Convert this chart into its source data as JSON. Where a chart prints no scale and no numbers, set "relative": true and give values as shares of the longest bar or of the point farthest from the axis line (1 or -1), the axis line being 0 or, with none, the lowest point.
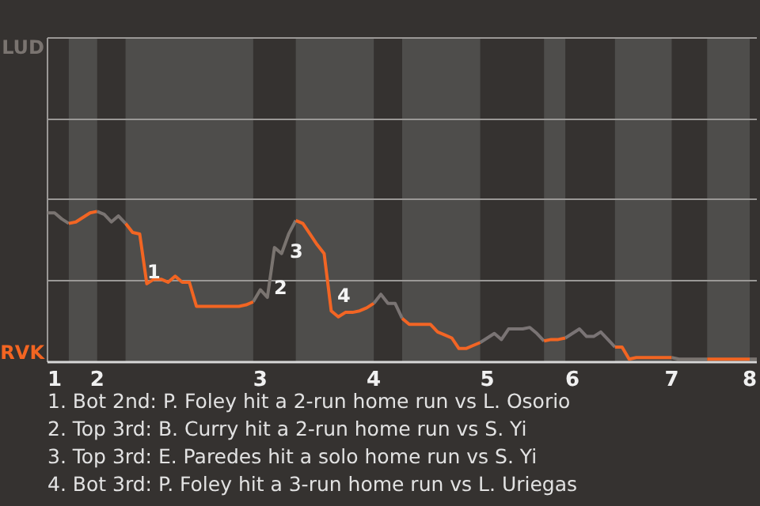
{
  "chart_data": {
    "type": "line",
    "relative": true,
    "ref_lines": [
      {
        "axis": "y",
        "value": 0.54,
        "color": "#9a9896"
      },
      {
        "axis": "y",
        "value": 1.08,
        "color": "#9a9896"
      },
      {
        "axis": "y",
        "value": 1.61,
        "color": "#9a9896"
      }
    ],
    "categories": [
      null,
      "1",
      null,
      null,
      null,
      null,
      null,
      "2",
      null,
      null,
      null,
      null,
      null,
      null,
      null,
      null,
      null,
      null,
      null,
      null,
      null,
      null,
      null,
      null,
      null,
      null,
      null,
      null,
      null,
      null,
      "3",
      null,
      null,
      null,
      null,
      null,
      null,
      null,
      null,
      null,
      null,
      null,
      null,
      null,
      null,
      null,
      "4",
      null,
      null,
      null,
      null,
      null,
      null,
      null,
      null,
      null,
      null,
      null,
      null,
      null,
      null,
      null,
      "5",
      null,
      null,
      null,
      null,
      null,
      null,
      null,
      null,
      null,
      null,
      null,
      "6",
      null,
      null,
      null,
      null,
      null,
      null,
      null,
      null,
      null,
      null,
      null,
      null,
      null,
      "7",
      null,
      null,
      null,
      null,
      null,
      null,
      null,
      null,
      null,
      null,
      "8",
      null
    ],
    "series": [
      {
        "name": "LUD",
        "color": "#7a7470",
        "values": [
          null,
          null,
          null,
          null,
          null,
          null,
          null,
          null,
          null,
          null,
          null,
          null,
          null,
          null,
          null,
          null,
          null,
          null,
          null,
          null,
          null,
          null,
          null,
          null,
          null,
          null,
          null,
          null,
          null,
          0.4,
          0.48,
          0.43,
          0.76,
          0.72,
          0.85,
          0.94,
          null,
          null,
          null,
          null,
          null,
          null,
          null,
          null,
          null,
          null,
          null,
          null,
          null,
          null,
          null,
          null,
          null,
          null,
          null,
          null,
          null,
          null,
          null,
          null,
          null,
          null,
          null,
          null,
          null,
          null,
          null,
          null,
          null,
          null,
          null,
          null,
          null,
          null,
          null,
          null,
          null,
          null,
          null,
          null,
          null,
          null,
          null,
          null,
          null,
          null,
          null,
          null,
          null,
          null,
          null,
          null,
          null,
          null,
          null,
          null,
          null,
          null,
          null,
          null,
          null
        ]
      },
      {
        "name": "RVK",
        "color": "#f26522",
        "values": [
          null,
          null,
          null,
          null,
          null,
          null,
          null,
          null,
          null,
          null,
          null,
          0.92,
          0.86,
          0.85,
          0.52,
          0.55,
          0.55,
          0.53,
          0.57,
          0.53,
          0.53,
          0.37,
          0.37,
          0.37,
          0.37,
          0.37,
          0.37,
          0.37,
          0.38,
          0.4,
          null,
          null,
          null,
          null,
          null,
          null,
          null,
          null,
          null,
          null,
          null,
          null,
          null,
          null,
          null,
          null,
          null,
          null,
          null,
          null,
          null,
          null,
          null,
          null,
          null,
          null,
          null,
          null,
          null,
          null,
          null,
          null,
          null,
          null,
          null,
          null,
          null,
          null,
          null,
          null,
          null,
          null,
          null,
          null,
          null,
          null,
          null,
          null,
          null,
          null,
          null,
          null,
          null,
          null,
          null,
          null,
          null,
          null,
          null,
          null,
          null,
          null,
          null,
          null,
          null,
          null,
          null,
          null,
          null,
          null,
          null
        ]
      },
      {
        "color": "#7a7471",
        "values": [
          0.99,
          0.99,
          0.95,
          0.92,
          null,
          null,
          null,
          null,
          null,
          null,
          null,
          null,
          null,
          null,
          null,
          null,
          null,
          null,
          null,
          null,
          null,
          null,
          null,
          null,
          null,
          null,
          null,
          null,
          null,
          null,
          null,
          null,
          null,
          null,
          null,
          null,
          null,
          null,
          null,
          null,
          null,
          null,
          null,
          null,
          null,
          null,
          null,
          null,
          null,
          null,
          null,
          null,
          null,
          null,
          null,
          null,
          null,
          null,
          null,
          null,
          null,
          null,
          null,
          null,
          null,
          null,
          null,
          null,
          null,
          null,
          null,
          null,
          null,
          null,
          null,
          null,
          null,
          null,
          null,
          null,
          null,
          null,
          null,
          null,
          null,
          null,
          null,
          null,
          null,
          null,
          null,
          null,
          null,
          null,
          null,
          null,
          null,
          null,
          null,
          null,
          null
        ]
      },
      {
        "color": "#f26523",
        "values": [
          null,
          null,
          null,
          0.92,
          0.93,
          0.96,
          0.99,
          1.0,
          null,
          null,
          null,
          null,
          null,
          null,
          null,
          null,
          null,
          null,
          null,
          null,
          null,
          null,
          null,
          null,
          null,
          null,
          null,
          null,
          null,
          null,
          null,
          null,
          null,
          null,
          null,
          null,
          null,
          null,
          null,
          null,
          null,
          null,
          null,
          null,
          null,
          null,
          null,
          null,
          null,
          null,
          null,
          null,
          null,
          null,
          null,
          null,
          null,
          null,
          null,
          null,
          null,
          null,
          null,
          null,
          null,
          null,
          null,
          null,
          null,
          null,
          null,
          null,
          null,
          null,
          null,
          null,
          null,
          null,
          null,
          null,
          null,
          null,
          null,
          null,
          null,
          null,
          null,
          null,
          null,
          null,
          null,
          null,
          null,
          null,
          null,
          null,
          null,
          null,
          null,
          null,
          null
        ]
      },
      {
        "color": "#7a7472",
        "values": [
          null,
          null,
          null,
          null,
          null,
          null,
          null,
          1.0,
          0.98,
          0.93,
          0.97,
          0.92,
          null,
          null,
          null,
          null,
          null,
          null,
          null,
          null,
          null,
          null,
          null,
          null,
          null,
          null,
          null,
          null,
          null,
          null,
          null,
          null,
          null,
          null,
          null,
          null,
          null,
          null,
          null,
          null,
          null,
          null,
          null,
          null,
          null,
          null,
          null,
          null,
          null,
          null,
          null,
          null,
          null,
          null,
          null,
          null,
          null,
          null,
          null,
          null,
          null,
          null,
          null,
          null,
          null,
          null,
          null,
          null,
          null,
          null,
          null,
          null,
          null,
          null,
          null,
          null,
          null,
          null,
          null,
          null,
          null,
          null,
          null,
          null,
          null,
          null,
          null,
          null,
          null,
          null,
          null,
          null,
          null,
          null,
          null,
          null,
          null,
          null,
          null,
          null,
          null
        ]
      },
      {
        "color": "#f26524",
        "values": [
          null,
          null,
          null,
          null,
          null,
          null,
          null,
          null,
          null,
          null,
          null,
          null,
          null,
          null,
          null,
          null,
          null,
          null,
          null,
          null,
          null,
          null,
          null,
          null,
          null,
          null,
          null,
          null,
          null,
          null,
          null,
          null,
          null,
          null,
          null,
          0.94,
          0.92,
          0.85,
          0.78,
          0.72,
          0.34,
          0.3,
          0.33,
          0.33,
          0.34,
          0.36,
          0.39,
          null,
          null,
          null,
          null,
          null,
          null,
          null,
          null,
          null,
          null,
          null,
          null,
          null,
          null,
          null,
          null,
          null,
          null,
          null,
          null,
          null,
          null,
          null,
          null,
          null,
          null,
          null,
          null,
          null,
          null,
          null,
          null,
          null,
          null,
          null,
          null,
          null,
          null,
          null,
          null,
          null,
          null,
          null,
          null,
          null,
          null,
          null,
          null,
          null,
          null,
          null,
          null,
          null,
          null
        ]
      },
      {
        "color": "#7a7473",
        "values": [
          null,
          null,
          null,
          null,
          null,
          null,
          null,
          null,
          null,
          null,
          null,
          null,
          null,
          null,
          null,
          null,
          null,
          null,
          null,
          null,
          null,
          null,
          null,
          null,
          null,
          null,
          null,
          null,
          null,
          null,
          null,
          null,
          null,
          null,
          null,
          null,
          null,
          null,
          null,
          null,
          null,
          null,
          null,
          null,
          null,
          null,
          0.39,
          0.45,
          0.39,
          0.39,
          0.29,
          null,
          null,
          null,
          null,
          null,
          null,
          null,
          null,
          null,
          null,
          null,
          null,
          null,
          null,
          null,
          null,
          null,
          null,
          null,
          null,
          null,
          null,
          null,
          null,
          null,
          null,
          null,
          null,
          null,
          null,
          null,
          null,
          null,
          null,
          null,
          null,
          null,
          null,
          null,
          null,
          null,
          null,
          null,
          null,
          null,
          null,
          null,
          null,
          null,
          null
        ]
      },
      {
        "color": "#f26525",
        "values": [
          null,
          null,
          null,
          null,
          null,
          null,
          null,
          null,
          null,
          null,
          null,
          null,
          null,
          null,
          null,
          null,
          null,
          null,
          null,
          null,
          null,
          null,
          null,
          null,
          null,
          null,
          null,
          null,
          null,
          null,
          null,
          null,
          null,
          null,
          null,
          null,
          null,
          null,
          null,
          null,
          null,
          null,
          null,
          null,
          null,
          null,
          null,
          null,
          null,
          null,
          0.29,
          0.25,
          0.25,
          0.25,
          0.25,
          0.2,
          0.18,
          0.16,
          0.09,
          0.09,
          0.11,
          0.13,
          null,
          null,
          null,
          null,
          null,
          null,
          null,
          null,
          null,
          null,
          null,
          null,
          null,
          null,
          null,
          null,
          null,
          null,
          null,
          null,
          null,
          null,
          null,
          null,
          null,
          null,
          null,
          null,
          null,
          null,
          null,
          null,
          null,
          null,
          null,
          null,
          null,
          null,
          null
        ]
      },
      {
        "color": "#7a7474",
        "values": [
          null,
          null,
          null,
          null,
          null,
          null,
          null,
          null,
          null,
          null,
          null,
          null,
          null,
          null,
          null,
          null,
          null,
          null,
          null,
          null,
          null,
          null,
          null,
          null,
          null,
          null,
          null,
          null,
          null,
          null,
          null,
          null,
          null,
          null,
          null,
          null,
          null,
          null,
          null,
          null,
          null,
          null,
          null,
          null,
          null,
          null,
          null,
          null,
          null,
          null,
          null,
          null,
          null,
          null,
          null,
          null,
          null,
          null,
          null,
          null,
          null,
          0.13,
          0.16,
          0.19,
          0.15,
          0.22,
          0.22,
          0.22,
          0.23,
          0.19,
          0.14,
          null,
          null,
          null,
          null,
          null,
          null,
          null,
          null,
          null,
          null,
          null,
          null,
          null,
          null,
          null,
          null,
          null,
          null,
          null,
          null,
          null,
          null,
          null,
          null,
          null,
          null,
          null,
          null,
          null,
          null
        ]
      },
      {
        "color": "#f26522",
        "values": [
          null,
          null,
          null,
          null,
          null,
          null,
          null,
          null,
          null,
          null,
          null,
          null,
          null,
          null,
          null,
          null,
          null,
          null,
          null,
          null,
          null,
          null,
          null,
          null,
          null,
          null,
          null,
          null,
          null,
          null,
          null,
          null,
          null,
          null,
          null,
          null,
          null,
          null,
          null,
          null,
          null,
          null,
          null,
          null,
          null,
          null,
          null,
          null,
          null,
          null,
          null,
          null,
          null,
          null,
          null,
          null,
          null,
          null,
          null,
          null,
          null,
          null,
          null,
          null,
          null,
          null,
          null,
          null,
          null,
          null,
          0.14,
          0.15,
          0.15,
          0.16,
          null,
          null,
          null,
          null,
          null,
          null,
          null,
          null,
          null,
          null,
          null,
          null,
          null,
          null,
          null,
          null,
          null,
          null,
          null,
          null,
          null,
          null,
          null,
          null,
          null,
          null,
          null
        ]
      },
      {
        "color": "#7a7475",
        "values": [
          null,
          null,
          null,
          null,
          null,
          null,
          null,
          null,
          null,
          null,
          null,
          null,
          null,
          null,
          null,
          null,
          null,
          null,
          null,
          null,
          null,
          null,
          null,
          null,
          null,
          null,
          null,
          null,
          null,
          null,
          null,
          null,
          null,
          null,
          null,
          null,
          null,
          null,
          null,
          null,
          null,
          null,
          null,
          null,
          null,
          null,
          null,
          null,
          null,
          null,
          null,
          null,
          null,
          null,
          null,
          null,
          null,
          null,
          null,
          null,
          null,
          null,
          null,
          null,
          null,
          null,
          null,
          null,
          null,
          null,
          null,
          null,
          null,
          0.16,
          0.19,
          0.22,
          0.17,
          0.17,
          0.2,
          0.15,
          0.1,
          null,
          null,
          null,
          null,
          null,
          null,
          null,
          null,
          null,
          null,
          null,
          null,
          null,
          null,
          null,
          null,
          null,
          null,
          null,
          null
        ]
      },
      {
        "color": "#f26522",
        "values": [
          null,
          null,
          null,
          null,
          null,
          null,
          null,
          null,
          null,
          null,
          null,
          null,
          null,
          null,
          null,
          null,
          null,
          null,
          null,
          null,
          null,
          null,
          null,
          null,
          null,
          null,
          null,
          null,
          null,
          null,
          null,
          null,
          null,
          null,
          null,
          null,
          null,
          null,
          null,
          null,
          null,
          null,
          null,
          null,
          null,
          null,
          null,
          null,
          null,
          null,
          null,
          null,
          null,
          null,
          null,
          null,
          null,
          null,
          null,
          null,
          null,
          null,
          null,
          null,
          null,
          null,
          null,
          null,
          null,
          null,
          null,
          null,
          null,
          null,
          null,
          null,
          null,
          null,
          null,
          null,
          0.1,
          0.1,
          0.02,
          0.03,
          0.03,
          0.03,
          0.03,
          0.03,
          0.03,
          null,
          null,
          null,
          null,
          null,
          null,
          null,
          null,
          null,
          null,
          null,
          null
        ]
      },
      {
        "color": "#7a7470",
        "values": [
          null,
          null,
          null,
          null,
          null,
          null,
          null,
          null,
          null,
          null,
          null,
          null,
          null,
          null,
          null,
          null,
          null,
          null,
          null,
          null,
          null,
          null,
          null,
          null,
          null,
          null,
          null,
          null,
          null,
          null,
          null,
          null,
          null,
          null,
          null,
          null,
          null,
          null,
          null,
          null,
          null,
          null,
          null,
          null,
          null,
          null,
          null,
          null,
          null,
          null,
          null,
          null,
          null,
          null,
          null,
          null,
          null,
          null,
          null,
          null,
          null,
          null,
          null,
          null,
          null,
          null,
          null,
          null,
          null,
          null,
          null,
          null,
          null,
          null,
          null,
          null,
          null,
          null,
          null,
          null,
          null,
          null,
          null,
          null,
          null,
          null,
          null,
          null,
          0.03,
          0.02,
          0.02,
          0.02,
          0.02,
          0.02,
          null,
          null,
          null,
          null,
          null,
          null,
          null
        ]
      },
      {
        "color": "#f26522",
        "values": [
          null,
          null,
          null,
          null,
          null,
          null,
          null,
          null,
          null,
          null,
          null,
          null,
          null,
          null,
          null,
          null,
          null,
          null,
          null,
          null,
          null,
          null,
          null,
          null,
          null,
          null,
          null,
          null,
          null,
          null,
          null,
          null,
          null,
          null,
          null,
          null,
          null,
          null,
          null,
          null,
          null,
          null,
          null,
          null,
          null,
          null,
          null,
          null,
          null,
          null,
          null,
          null,
          null,
          null,
          null,
          null,
          null,
          null,
          null,
          null,
          null,
          null,
          null,
          null,
          null,
          null,
          null,
          null,
          null,
          null,
          null,
          null,
          null,
          null,
          null,
          null,
          null,
          null,
          null,
          null,
          null,
          null,
          null,
          null,
          null,
          null,
          null,
          null,
          null,
          null,
          null,
          null,
          null,
          0.02,
          0.02,
          0.02,
          0.02,
          0.02,
          0.02,
          0.02,
          null
        ]
      },
      {
        "color": "#7a7470",
        "values": [
          null,
          null,
          null,
          null,
          null,
          null,
          null,
          null,
          null,
          null,
          null,
          null,
          null,
          null,
          null,
          null,
          null,
          null,
          null,
          null,
          null,
          null,
          null,
          null,
          null,
          null,
          null,
          null,
          null,
          null,
          null,
          null,
          null,
          null,
          null,
          null,
          null,
          null,
          null,
          null,
          null,
          null,
          null,
          null,
          null,
          null,
          null,
          null,
          null,
          null,
          null,
          null,
          null,
          null,
          null,
          null,
          null,
          null,
          null,
          null,
          null,
          null,
          null,
          null,
          null,
          null,
          null,
          null,
          null,
          null,
          null,
          null,
          null,
          null,
          null,
          null,
          null,
          null,
          null,
          null,
          null,
          null,
          null,
          null,
          null,
          null,
          null,
          null,
          null,
          null,
          null,
          null,
          null,
          null,
          null,
          null,
          null,
          null,
          null,
          0.02,
          0.02
        ]
      }
    ],
    "annotations": [
      "1",
      "2",
      "3",
      "4",
      "1. Bot 2nd: P. Foley hit a 2-run home run vs L. Osorio",
      "2. Top 3rd: B. Curry hit a 2-run home run vs S. Yi",
      "3. Top 3rd: E. Paredes hit a solo home run vs S. Yi",
      "4. Bot 3rd: P. Foley hit a 3-run home run vs L. Uriegas"
    ]
  }
}
